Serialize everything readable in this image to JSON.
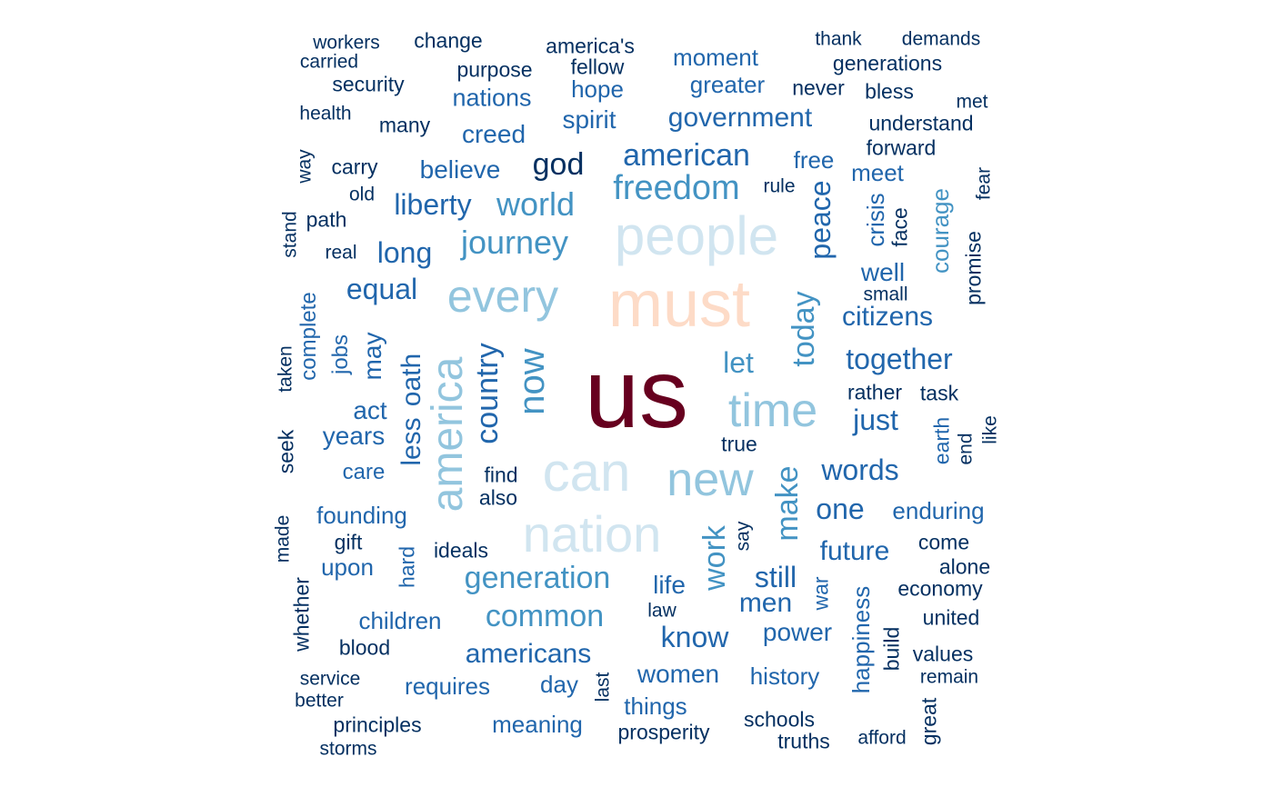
{
  "words": [
    "us",
    "must",
    "people",
    "can",
    "nation",
    "time",
    "new",
    "every",
    "america",
    "now",
    "freedom",
    "journey",
    "world",
    "american",
    "country",
    "generation",
    "common",
    "today",
    "make",
    "work",
    "let",
    "americans",
    "know",
    "peace",
    "together",
    "words",
    "one",
    "future",
    "still",
    "liberty",
    "god",
    "equal",
    "long",
    "government",
    "citizens",
    "just",
    "men",
    "less",
    "oath",
    "believe",
    "creed",
    "nations",
    "spirit",
    "hope",
    "moment",
    "greater",
    "free",
    "meet",
    "courage",
    "crisis",
    "well",
    "power",
    "history",
    "women",
    "requires",
    "meaning",
    "things",
    "life",
    "day",
    "upon",
    "founding",
    "enduring",
    "children",
    "care",
    "years",
    "act",
    "may",
    "jobs",
    "complete",
    "happiness",
    "workers",
    "change",
    "america's",
    "fellow",
    "purpose",
    "thank",
    "demands",
    "generations",
    "never",
    "bless",
    "met",
    "security",
    "carried",
    "health",
    "many",
    "understand",
    "forward",
    "way",
    "carry",
    "old",
    "rule",
    "fear",
    "face",
    "stand",
    "path",
    "real",
    "promise",
    "small",
    "taken",
    "rather",
    "task",
    "earth",
    "end",
    "like",
    "true",
    "seek",
    "find",
    "also",
    "made",
    "gift",
    "hard",
    "ideals",
    "say",
    "come",
    "alone",
    "whether",
    "war",
    "economy",
    "law",
    "united",
    "blood",
    "build",
    "values",
    "service",
    "remain",
    "better",
    "last",
    "principles",
    "prosperity",
    "schools",
    "truths",
    "afford",
    "great",
    "storms"
  ],
  "word_colors": {
    "rank-1": "#67001F",
    "rank-2": "#FDDBC7",
    "rank-3": "#D1E5F0",
    "rank-4": "#92C5DE",
    "rank-5": "#4393C3",
    "rank-6": "#2166AC",
    "rank-7": "#053061"
  }
}
